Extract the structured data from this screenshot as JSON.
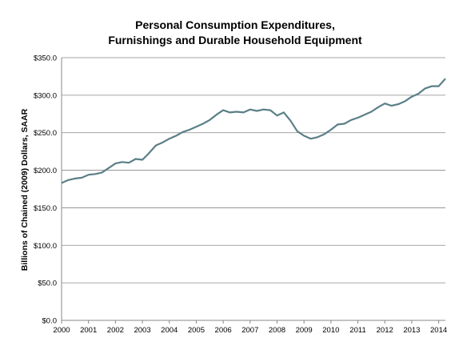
{
  "chart_data": {
    "type": "line",
    "title_lines": [
      "Personal Consumption Expenditures,",
      "Furnishings and Durable Household Equipment"
    ],
    "ylabel": "Billions of Chained (2009) Dollars, SAAR",
    "xlabel": "",
    "ylim": [
      0,
      350
    ],
    "y_ticks": [
      {
        "value": 0,
        "label": "$0.0"
      },
      {
        "value": 50,
        "label": "$50.0"
      },
      {
        "value": 100,
        "label": "$100.0"
      },
      {
        "value": 150,
        "label": "$150.0"
      },
      {
        "value": 200,
        "label": "$200.0"
      },
      {
        "value": 250,
        "label": "$250.0"
      },
      {
        "value": 300,
        "label": "$300.0"
      },
      {
        "value": 350,
        "label": "$350.0"
      }
    ],
    "x_ticks": [
      {
        "value": 2000,
        "label": "2000"
      },
      {
        "value": 2001,
        "label": "2001"
      },
      {
        "value": 2002,
        "label": "2002"
      },
      {
        "value": 2003,
        "label": "2003"
      },
      {
        "value": 2004,
        "label": "2004"
      },
      {
        "value": 2005,
        "label": "2005"
      },
      {
        "value": 2006,
        "label": "2006"
      },
      {
        "value": 2007,
        "label": "2007"
      },
      {
        "value": 2008,
        "label": "2008"
      },
      {
        "value": 2009,
        "label": "2009"
      },
      {
        "value": 2010,
        "label": "2010"
      },
      {
        "value": 2011,
        "label": "2011"
      },
      {
        "value": 2012,
        "label": "2012"
      },
      {
        "value": 2013,
        "label": "2013"
      },
      {
        "value": 2014,
        "label": "2014"
      }
    ],
    "xlim": [
      2000,
      2014.25
    ],
    "grid": true,
    "legend": "none",
    "line_color": "#5b7f87",
    "series": [
      {
        "x": [
          "2000-Q1",
          "2000-Q2",
          "2000-Q3",
          "2000-Q4",
          "2001-Q1",
          "2001-Q2",
          "2001-Q3",
          "2001-Q4",
          "2002-Q1",
          "2002-Q2",
          "2002-Q3",
          "2002-Q4",
          "2003-Q1",
          "2003-Q2",
          "2003-Q3",
          "2003-Q4",
          "2004-Q1",
          "2004-Q2",
          "2004-Q3",
          "2004-Q4",
          "2005-Q1",
          "2005-Q2",
          "2005-Q3",
          "2005-Q4",
          "2006-Q1",
          "2006-Q2",
          "2006-Q3",
          "2006-Q4",
          "2007-Q1",
          "2007-Q2",
          "2007-Q3",
          "2007-Q4",
          "2008-Q1",
          "2008-Q2",
          "2008-Q3",
          "2008-Q4",
          "2009-Q1",
          "2009-Q2",
          "2009-Q3",
          "2009-Q4",
          "2010-Q1",
          "2010-Q2",
          "2010-Q3",
          "2010-Q4",
          "2011-Q1",
          "2011-Q2",
          "2011-Q3",
          "2011-Q4",
          "2012-Q1",
          "2012-Q2",
          "2012-Q3",
          "2012-Q4",
          "2013-Q1",
          "2013-Q2",
          "2013-Q3",
          "2013-Q4",
          "2014-Q1",
          "2014-Q2"
        ],
        "values": [
          183,
          187,
          189,
          190,
          194,
          195,
          197,
          203,
          209,
          211,
          210,
          215,
          214,
          223,
          233,
          237,
          242,
          246,
          251,
          254,
          258,
          262,
          267,
          274,
          280,
          277,
          278,
          277,
          281,
          279,
          281,
          280,
          273,
          277,
          266,
          252,
          246,
          242,
          244,
          248,
          254,
          261,
          262,
          267,
          270,
          274,
          278,
          284,
          289,
          286,
          288,
          292,
          298,
          302,
          309,
          312,
          312,
          322
        ]
      }
    ]
  }
}
